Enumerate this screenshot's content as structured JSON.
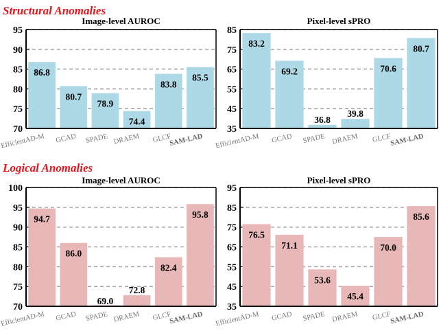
{
  "sections": {
    "structural_title": "Structural Anomalies",
    "logical_title": "Logical Anomalies"
  },
  "colors": {
    "structural_bar": "#add8e6",
    "logical_bar": "#e8b8b8",
    "section_title": "#e8141b",
    "grid": "#a6a6a6"
  },
  "chart_data": [
    {
      "type": "bar",
      "title": "Image-level AUROC",
      "group": "Structural Anomalies",
      "categories": [
        "EfficientAD-M",
        "GCAD",
        "SPADE",
        "DRAEM",
        "GLCF",
        "SAM-LAD"
      ],
      "values": [
        86.8,
        80.7,
        78.9,
        74.4,
        83.8,
        85.5
      ],
      "labels": [
        "86.8",
        "80.7",
        "78.9",
        "74.4",
        "83.8",
        "85.5"
      ],
      "ylim": [
        70,
        95
      ],
      "yticks": [
        70,
        75,
        80,
        85,
        90,
        95
      ],
      "grid": true,
      "xlabel": "",
      "ylabel": ""
    },
    {
      "type": "bar",
      "title": "Pixel-level sPRO",
      "group": "Structural Anomalies",
      "categories": [
        "EfficientAD-M",
        "GCAD",
        "SPADE",
        "DRAEM",
        "GLCF",
        "SAM-LAD"
      ],
      "values": [
        83.2,
        69.2,
        36.8,
        39.8,
        70.6,
        80.7
      ],
      "labels": [
        "83.2",
        "69.2",
        "36.8",
        "39.8",
        "70.6",
        "80.7"
      ],
      "ylim": [
        35,
        85
      ],
      "yticks": [
        35,
        45,
        55,
        65,
        75,
        85
      ],
      "grid": true,
      "xlabel": "",
      "ylabel": ""
    },
    {
      "type": "bar",
      "title": "Image-level AUROC",
      "group": "Logical Anomalies",
      "categories": [
        "EfficientAD-M",
        "GCAD",
        "SPADE",
        "DRAEM",
        "GLCF",
        "SAM-LAD"
      ],
      "values": [
        94.7,
        86.0,
        69.0,
        72.8,
        82.4,
        95.8
      ],
      "labels": [
        "94.7",
        "86.0",
        "69.0",
        "72.8",
        "82.4",
        "95.8"
      ],
      "ylim": [
        70,
        100
      ],
      "yticks": [
        70,
        75,
        80,
        85,
        90,
        95,
        100
      ],
      "grid": true,
      "xlabel": "",
      "ylabel": ""
    },
    {
      "type": "bar",
      "title": "Pixel-level sPRO",
      "group": "Logical Anomalies",
      "categories": [
        "EfficientAD-M",
        "GCAD",
        "SPADE",
        "DRAEM",
        "GLCF",
        "SAM-LAD"
      ],
      "values": [
        76.5,
        71.1,
        53.6,
        45.4,
        70.0,
        85.6
      ],
      "labels": [
        "76.5",
        "71.1",
        "53.6",
        "45.4",
        "70.0",
        "85.6"
      ],
      "ylim": [
        35,
        95
      ],
      "yticks": [
        35,
        45,
        55,
        65,
        75,
        85,
        95
      ],
      "grid": true,
      "xlabel": "",
      "ylabel": ""
    }
  ]
}
